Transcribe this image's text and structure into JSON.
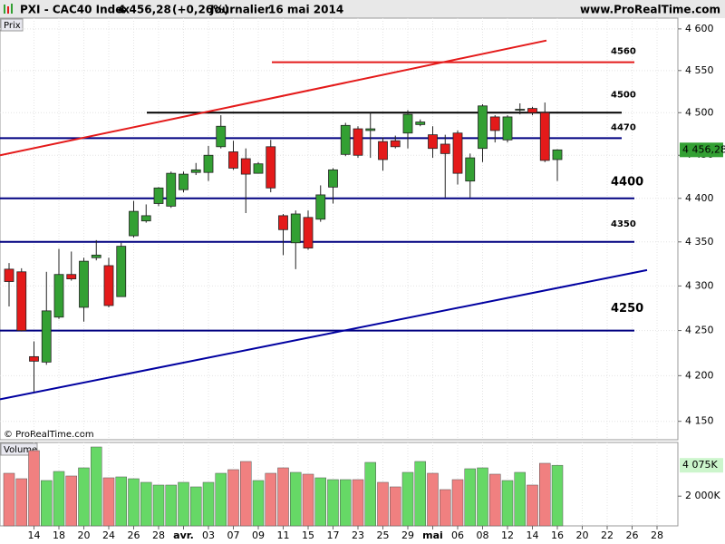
{
  "header": {
    "symbol": "PXI - CAC40 Index",
    "change": "(+0,26%)",
    "period": "Journalier",
    "date": "16 mai 2014",
    "site": "www.ProRealTime.com"
  },
  "chart_data": [
    {
      "type": "candlestick",
      "panel_label": "Prix",
      "watermark": "© ProRealTime.com",
      "categories": [
        null,
        null,
        "14",
        null,
        "18",
        null,
        "20",
        null,
        "24",
        null,
        "26",
        null,
        "28",
        null,
        "avr.",
        null,
        "03",
        null,
        "07",
        null,
        "09",
        null,
        "11",
        null,
        "15",
        null,
        "17",
        null,
        "23",
        null,
        "25",
        null,
        "29",
        null,
        "mai",
        null,
        "06",
        null,
        "08",
        null,
        "12",
        null,
        "14",
        null,
        "16",
        null,
        "20",
        null,
        "22",
        null,
        "26",
        null,
        "28",
        null
      ],
      "open": [
        4319,
        4316,
        4221,
        4215,
        4265,
        4313,
        4276,
        4332,
        4323,
        4288,
        4357,
        4374,
        4394,
        4391,
        4410,
        4430,
        4430,
        4460,
        4454,
        4446,
        4429,
        4460,
        4380,
        4349,
        4378,
        4376,
        4413,
        4451,
        4481,
        4479,
        4466,
        4467,
        4476,
        4486,
        4474,
        4463,
        4476,
        4420,
        4458,
        4495,
        4468,
        4503,
        4505,
        4500,
        4445,
        null,
        null,
        null,
        null,
        null,
        null,
        null,
        null,
        null
      ],
      "high": [
        4326,
        4320,
        4238,
        4316,
        4342,
        4339,
        4332,
        4352,
        4332,
        4349,
        4397,
        4393,
        4413,
        4431,
        4431,
        4441,
        4461,
        4497,
        4467,
        4458,
        4442,
        4468,
        4382,
        4386,
        4386,
        4415,
        4435,
        4488,
        4484,
        4500,
        4471,
        4473,
        4503,
        4492,
        4484,
        4474,
        4479,
        4452,
        4510,
        4497,
        4497,
        4511,
        4507,
        4512,
        4457,
        null,
        null,
        null,
        null,
        null,
        null,
        null,
        null,
        null
      ],
      "low": [
        4277,
        4249,
        4182,
        4212,
        4263,
        4306,
        4260,
        4329,
        4276,
        4288,
        4355,
        4372,
        4391,
        4389,
        4407,
        4427,
        4420,
        4458,
        4433,
        4383,
        4429,
        4407,
        4335,
        4319,
        4341,
        4373,
        4394,
        4449,
        4447,
        4447,
        4432,
        4458,
        4458,
        4484,
        4447,
        4401,
        4416,
        4401,
        4442,
        4465,
        4465,
        4498,
        4497,
        4442,
        4420,
        null,
        null,
        null,
        null,
        null,
        null,
        null,
        null,
        null
      ],
      "close": [
        4305,
        4250,
        4216,
        4272,
        4313,
        4308,
        4328,
        4335,
        4278,
        4345,
        4385,
        4380,
        4412,
        4429,
        4428,
        4433,
        4450,
        4484,
        4435,
        4428,
        4440,
        4412,
        4364,
        4382,
        4343,
        4404,
        4433,
        4485,
        4450,
        4481,
        4445,
        4460,
        4498,
        4489,
        4458,
        4452,
        4429,
        4447,
        4508,
        4479,
        4495,
        4504,
        4500,
        4444,
        4456.28,
        null,
        null,
        null,
        null,
        null,
        null,
        null,
        null,
        null
      ],
      "up_color": "#33a033",
      "down_color": "#e41a1a",
      "ylim": [
        4130,
        4613
      ],
      "log_scale": true,
      "grid": true,
      "yticks": [
        {
          "value": 4150,
          "label": "4 150"
        },
        {
          "value": 4200,
          "label": "4 200"
        },
        {
          "value": 4250,
          "label": "4 250"
        },
        {
          "value": 4300,
          "label": "4 300"
        },
        {
          "value": 4350,
          "label": "4 350"
        },
        {
          "value": 4400,
          "label": "4 400"
        },
        {
          "value": 4450,
          "label": "4 450"
        },
        {
          "value": 4500,
          "label": "4 500"
        },
        {
          "value": 4550,
          "label": "4 550"
        },
        {
          "value": 4600,
          "label": "4 600"
        }
      ],
      "last_value": {
        "value": 4456.28,
        "label": "4 456,28"
      },
      "levels": [
        {
          "value": 4560,
          "color": "#e41a1a"
        },
        {
          "value": 4500,
          "color": "#000000"
        },
        {
          "value": 4470,
          "color": "#000080"
        },
        {
          "value": 4400,
          "color": "#000080"
        },
        {
          "value": 4350,
          "color": "#000080"
        },
        {
          "value": 4250,
          "color": "#000080"
        }
      ],
      "trendlines": [
        {
          "values": [
            4450,
            4586
          ],
          "color": "#e41a1a"
        },
        {
          "values": [
            4174,
            4318
          ],
          "color": "#0000a0"
        }
      ]
    },
    {
      "type": "volume",
      "panel_label": "Volume",
      "values": [
        3539,
        3173,
        5064,
        3051,
        3661,
        3356,
        3905,
        5308,
        3234,
        3295,
        3173,
        2929,
        2746,
        2746,
        2929,
        2624,
        2929,
        3539,
        3783,
        4332,
        3051,
        3539,
        3905,
        3600,
        3478,
        3234,
        3112,
        3112,
        3112,
        4271,
        2929,
        2624,
        3600,
        4332,
        3539,
        2441,
        3112,
        3844,
        3905,
        3478,
        3051,
        3600,
        2746,
        4210,
        4075,
        null,
        null,
        null,
        null,
        null,
        null,
        null,
        null,
        null
      ],
      "up_color": "#66d866",
      "down_color": "#f08080",
      "ylim": [
        0,
        5490
      ],
      "yticks": [
        {
          "value": 2000,
          "label": "2 000K"
        }
      ],
      "last_value": {
        "value": 4075,
        "label": "4 075K"
      }
    }
  ]
}
